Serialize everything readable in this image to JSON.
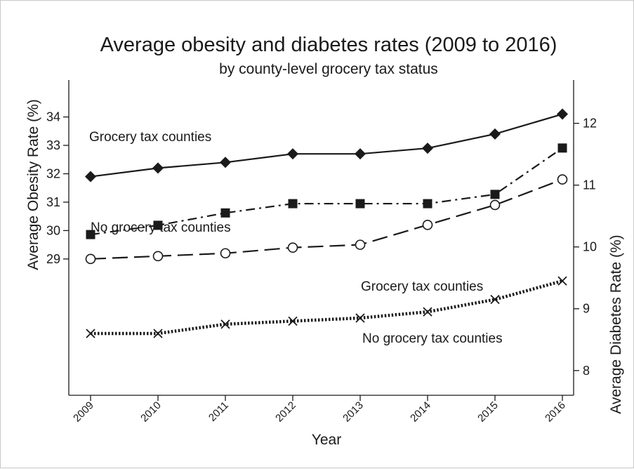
{
  "chart_data": {
    "type": "line",
    "title": "Average obesity and diabetes rates (2009 to 2016)",
    "subtitle": "by county-level grocery tax status",
    "xlabel": "Year",
    "ylabel_left": "Average Obesity Rate (%)",
    "ylabel_right": "Average Diabetes Rate (%)",
    "x": [
      "2009",
      "2010",
      "2011",
      "2012",
      "2013",
      "2014",
      "2015",
      "2016"
    ],
    "y_left_ticks": [
      "29",
      "30",
      "31",
      "32",
      "33",
      "34"
    ],
    "y_right_ticks": [
      "8",
      "9",
      "10",
      "11",
      "12"
    ],
    "y_left_range": [
      24.2,
      35.3
    ],
    "y_right_range": [
      7.6,
      12.7
    ],
    "series": [
      {
        "axis": "left",
        "marker": "diamond",
        "dash": "solid",
        "values": [
          31.9,
          32.2,
          32.4,
          32.7,
          32.7,
          32.9,
          33.4,
          34.1
        ]
      },
      {
        "axis": "left",
        "marker": "circle",
        "dash": "long-dash",
        "values": [
          29.0,
          29.1,
          29.2,
          29.4,
          29.5,
          30.2,
          30.9,
          31.8
        ]
      },
      {
        "axis": "right",
        "marker": "square",
        "dash": "dash-dot",
        "values": [
          10.2,
          10.35,
          10.55,
          10.7,
          10.7,
          10.7,
          10.85,
          11.6
        ]
      },
      {
        "axis": "right",
        "marker": "x",
        "dash": "dotted",
        "values": [
          8.6,
          8.6,
          8.75,
          8.8,
          8.85,
          8.95,
          9.15,
          9.45
        ]
      }
    ],
    "annotations": [
      {
        "text": "Grocery tax counties",
        "series": 0
      },
      {
        "text": "No grocery tax counties",
        "series": 1
      },
      {
        "text": "Grocery tax counties",
        "series": 2
      },
      {
        "text": "No grocery tax counties",
        "series": 3
      }
    ],
    "grid": false,
    "line_color": "#1a1a1a"
  }
}
